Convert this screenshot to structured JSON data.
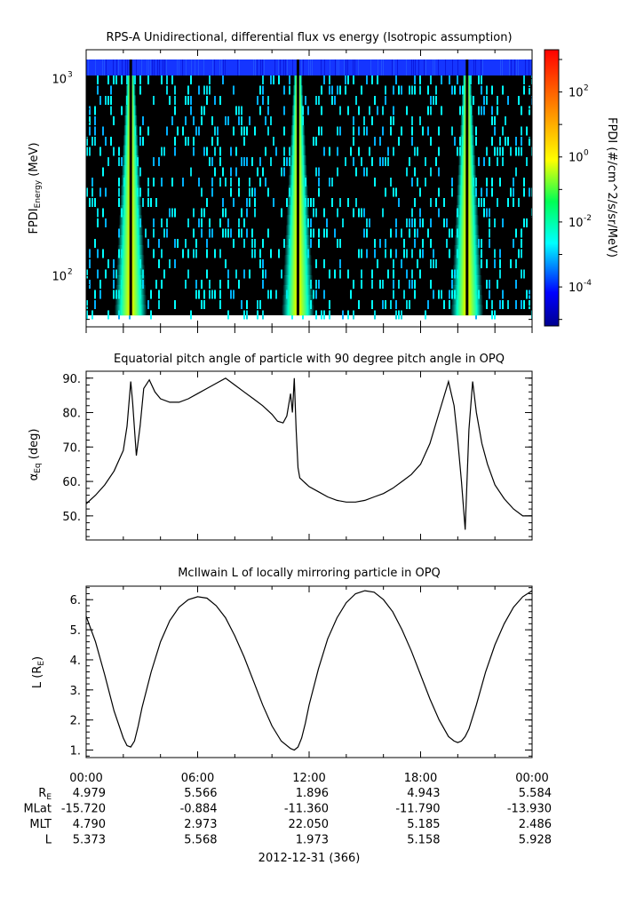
{
  "chart_data": [
    {
      "type": "heatmap",
      "title": "RPS-A Unidirectional, differential flux vs energy (Isotropic assumption)",
      "ylabel_main": "FPDI",
      "ylabel_sub": "Energy",
      "ylabel_unit": " (MeV)",
      "yscale": "log",
      "ylim": [
        55,
        1400
      ],
      "yticks": [
        {
          "v": 100,
          "base": "10",
          "exp": "2"
        },
        {
          "v": 1000,
          "base": "10",
          "exp": "3"
        }
      ],
      "colorbar": {
        "label": "FPDI (#/cm^2/s/sr/MeV)",
        "scale": "log",
        "range_log10": [
          -5.2,
          3.3
        ],
        "ticks": [
          {
            "log": 2,
            "base": "10",
            "exp": "2"
          },
          {
            "log": 0,
            "base": "10",
            "exp": "0"
          },
          {
            "log": -2,
            "base": "10",
            "exp": "-2"
          },
          {
            "log": -4,
            "base": "10",
            "exp": "-4"
          }
        ]
      },
      "bright_band_centers_hours": [
        2.4,
        11.4,
        20.5
      ],
      "colors": {
        "background": "#000000",
        "top_band": "#1535ff"
      }
    },
    {
      "type": "line",
      "title": "Equatorial pitch angle of particle with 90 degree pitch angle in OPQ",
      "ylabel_main": "α",
      "ylabel_sub": "Eq",
      "ylabel_unit": " (deg)",
      "ylim": [
        43,
        92
      ],
      "yticks": [
        "50.",
        "60.",
        "70.",
        "80.",
        "90."
      ],
      "x_hours": [
        0,
        0.5,
        1,
        1.5,
        2,
        2.2,
        2.4,
        2.5,
        2.7,
        2.9,
        3.1,
        3.4,
        3.7,
        4,
        4.5,
        5,
        5.5,
        6,
        6.5,
        7,
        7.5,
        8,
        8.5,
        9,
        9.5,
        10,
        10.3,
        10.6,
        10.8,
        11,
        11.1,
        11.2,
        11.3,
        11.4,
        11.5,
        11.6,
        11.7,
        11.8,
        12,
        12.5,
        13,
        13.5,
        14,
        14.5,
        15,
        15.5,
        16,
        16.5,
        17,
        17.5,
        18,
        18.5,
        19,
        19.5,
        19.8,
        20,
        20.2,
        20.4,
        20.6,
        20.8,
        21,
        21.3,
        21.6,
        22,
        22.5,
        23,
        23.5,
        24
      ],
      "y_deg": [
        53.5,
        56,
        59,
        63,
        69,
        76,
        89,
        83,
        67.5,
        76,
        87,
        89.5,
        86,
        84,
        83,
        83,
        84,
        85.5,
        87,
        88.5,
        90,
        88,
        86,
        84,
        82,
        79.5,
        77.5,
        77,
        79,
        85.5,
        80,
        90,
        75,
        64,
        61,
        60.5,
        60,
        59.5,
        58.5,
        57,
        55.5,
        54.5,
        54,
        54,
        54.5,
        55.5,
        56.5,
        58,
        60,
        62,
        65,
        71,
        80,
        89,
        82,
        72,
        60,
        46,
        75,
        89,
        80,
        71,
        65,
        59,
        55,
        52,
        50,
        50
      ],
      "colors": {
        "line": "#000000"
      }
    },
    {
      "type": "line",
      "title": "McIlwain L of locally mirroring particle in OPQ",
      "ylabel_main": "L (R",
      "ylabel_sub": "E",
      "ylabel_unit": ")",
      "ylim": [
        0.75,
        6.45
      ],
      "yticks": [
        "1.",
        "2.",
        "3.",
        "4.",
        "5.",
        "6."
      ],
      "x_hours": [
        0,
        0.5,
        1,
        1.5,
        2,
        2.2,
        2.4,
        2.6,
        2.8,
        3,
        3.5,
        4,
        4.5,
        5,
        5.5,
        6,
        6.5,
        7,
        7.5,
        8,
        8.5,
        9,
        9.5,
        10,
        10.5,
        11,
        11.2,
        11.4,
        11.6,
        11.8,
        12,
        12.5,
        13,
        13.5,
        14,
        14.5,
        15,
        15.5,
        16,
        16.5,
        17,
        17.5,
        18,
        18.5,
        19,
        19.5,
        19.8,
        20,
        20.2,
        20.4,
        20.6,
        20.8,
        21,
        21.5,
        22,
        22.5,
        23,
        23.5,
        24
      ],
      "y_re": [
        5.45,
        4.6,
        3.5,
        2.3,
        1.4,
        1.15,
        1.1,
        1.3,
        1.8,
        2.4,
        3.6,
        4.6,
        5.3,
        5.75,
        6,
        6.1,
        6.05,
        5.8,
        5.4,
        4.8,
        4.1,
        3.3,
        2.5,
        1.8,
        1.3,
        1.05,
        1.0,
        1.1,
        1.4,
        1.9,
        2.5,
        3.7,
        4.7,
        5.4,
        5.9,
        6.2,
        6.3,
        6.25,
        6.0,
        5.6,
        5.0,
        4.3,
        3.5,
        2.7,
        2.0,
        1.45,
        1.3,
        1.25,
        1.3,
        1.45,
        1.7,
        2.1,
        2.5,
        3.6,
        4.5,
        5.2,
        5.75,
        6.1,
        6.3
      ],
      "colors": {
        "line": "#000000"
      }
    }
  ],
  "x_ticks": [
    "00:00",
    "06:00",
    "12:00",
    "18:00",
    "00:00"
  ],
  "ephemeris": {
    "labels": [
      {
        "main": "R",
        "sub": "E"
      },
      {
        "main": "MLat",
        "sub": ""
      },
      {
        "main": "MLT",
        "sub": ""
      },
      {
        "main": "L",
        "sub": ""
      }
    ],
    "rows": [
      [
        "4.979",
        "5.566",
        "1.896",
        "4.943",
        "5.584"
      ],
      [
        "-15.720",
        "-0.884",
        "-11.360",
        "-11.790",
        "-13.930"
      ],
      [
        "4.790",
        "2.973",
        "22.050",
        "5.185",
        "2.486"
      ],
      [
        "5.373",
        "5.568",
        "1.973",
        "5.158",
        "5.928"
      ]
    ]
  },
  "date_label": "2012-12-31 (366)"
}
